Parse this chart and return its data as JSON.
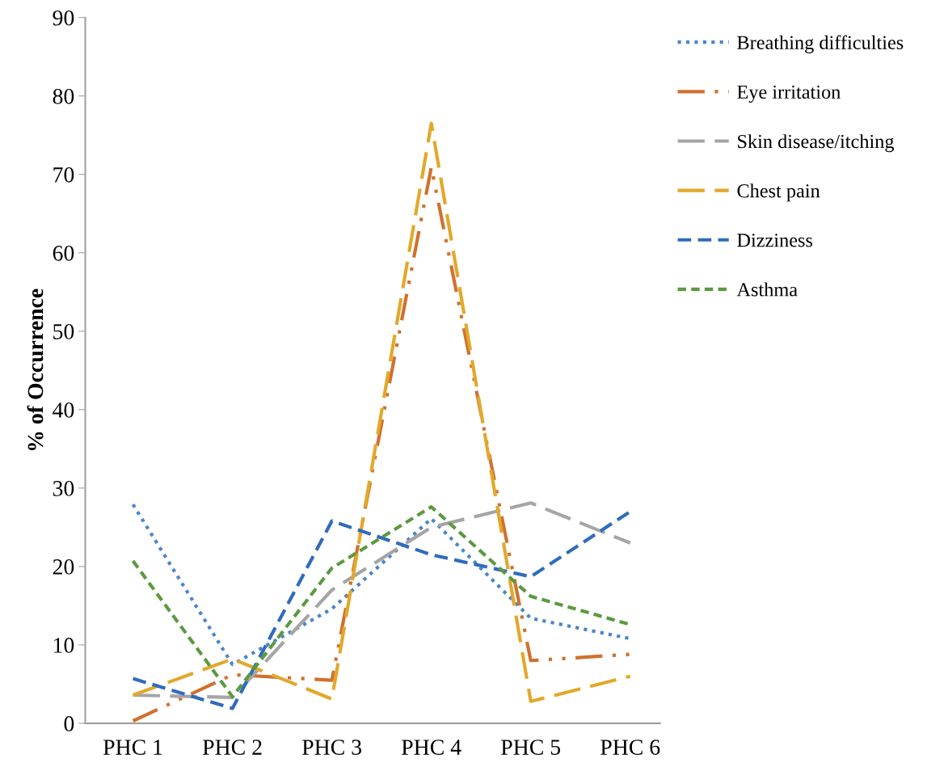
{
  "chart_data": {
    "type": "line",
    "ylabel": "% of Occurrence",
    "categories": [
      "PHC 1",
      "PHC 2",
      "PHC 3",
      "PHC 4",
      "PHC 5",
      "PHC 6"
    ],
    "ylim": [
      0,
      90
    ],
    "yticks": [
      0,
      10,
      20,
      30,
      40,
      50,
      60,
      70,
      80,
      90
    ],
    "grid": false,
    "legend": "right",
    "marker": "none",
    "series": [
      {
        "name": "Breathing difficulties",
        "color": "#4a86c5",
        "line_style": "dotted",
        "values": [
          27.9,
          7.5,
          14.6,
          26.1,
          13.4,
          10.8
        ]
      },
      {
        "name": "Eye irritation",
        "color": "#d0712f",
        "line_style": "dashdotdot",
        "values": [
          0.3,
          6.2,
          5.5,
          70.9,
          8.0,
          8.8
        ]
      },
      {
        "name": "Skin disease/itching",
        "color": "#a5a5a5",
        "line_style": "longdash",
        "values": [
          3.6,
          3.3,
          17.0,
          25.0,
          28.1,
          23.0
        ]
      },
      {
        "name": "Chest pain",
        "color": "#e3a82a",
        "line_style": "longdash",
        "values": [
          3.6,
          8.2,
          3.1,
          76.5,
          2.8,
          6.0
        ]
      },
      {
        "name": "Dizziness",
        "color": "#2f6bbd",
        "line_style": "dashed",
        "values": [
          5.7,
          1.9,
          25.8,
          21.5,
          18.7,
          27.0
        ]
      },
      {
        "name": "Asthma",
        "color": "#5b9a3f",
        "line_style": "shortdash",
        "values": [
          20.7,
          3.4,
          19.8,
          27.6,
          16.2,
          12.6
        ]
      }
    ]
  }
}
